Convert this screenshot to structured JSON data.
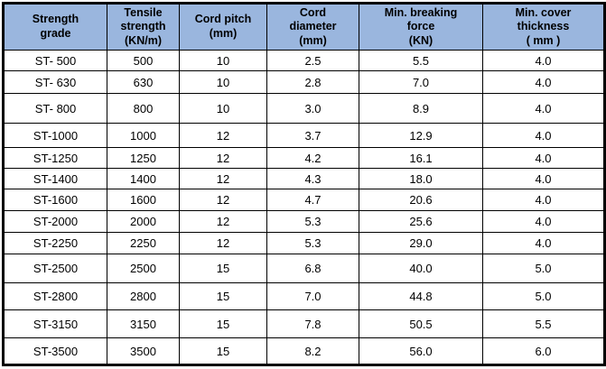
{
  "table": {
    "headers": [
      "Strength\ngrade",
      "Tensile\nstrength\n(KN/m)",
      "Cord pitch\n(mm)",
      "Cord\ndiameter\n(mm)",
      "Min. breaking\nforce\n(KN)",
      "Min. cover\nthickness\n( mm )"
    ],
    "rows": [
      [
        "ST- 500",
        "500",
        "10",
        "2.5",
        "5.5",
        "4.0"
      ],
      [
        "ST- 630",
        "630",
        "10",
        "2.8",
        "7.0",
        "4.0"
      ],
      [
        "ST- 800",
        "800",
        "10",
        "3.0",
        "8.9",
        "4.0"
      ],
      [
        "ST-1000",
        "1000",
        "12",
        "3.7",
        "12.9",
        "4.0"
      ],
      [
        "ST-1250",
        "1250",
        "12",
        "4.2",
        "16.1",
        "4.0"
      ],
      [
        "ST-1400",
        "1400",
        "12",
        "4.3",
        "18.0",
        "4.0"
      ],
      [
        "ST-1600",
        "1600",
        "12",
        "4.7",
        "20.6",
        "4.0"
      ],
      [
        "ST-2000",
        "2000",
        "12",
        "5.3",
        "25.6",
        "4.0"
      ],
      [
        "ST-2250",
        "2250",
        "12",
        "5.3",
        "29.0",
        "4.0"
      ],
      [
        "ST-2500",
        "2500",
        "15",
        "6.8",
        "40.0",
        "5.0"
      ],
      [
        "ST-2800",
        "2800",
        "15",
        "7.0",
        "44.8",
        "5.0"
      ],
      [
        "ST-3150",
        "3150",
        "15",
        "7.8",
        "50.5",
        "5.5"
      ],
      [
        "ST-3500",
        "3500",
        "15",
        "8.2",
        "56.0",
        "6.0"
      ]
    ]
  },
  "colors": {
    "header_bg": "#9ab6de",
    "border": "#000000",
    "text": "#000000"
  }
}
